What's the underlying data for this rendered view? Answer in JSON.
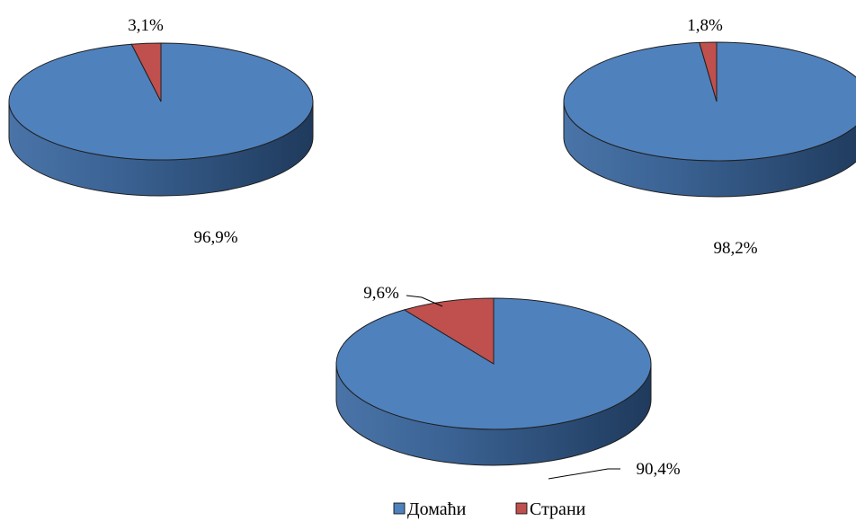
{
  "chart_data": [
    {
      "type": "pie",
      "categories": [
        "Домаћи",
        "Страни"
      ],
      "values": [
        96.9,
        3.1
      ],
      "labels": [
        "96,9%",
        "3,1%"
      ]
    },
    {
      "type": "pie",
      "categories": [
        "Домаћи",
        "Страни"
      ],
      "values": [
        98.2,
        1.8
      ],
      "labels": [
        "98,2%",
        "1,8%"
      ]
    },
    {
      "type": "pie",
      "categories": [
        "Домаћи",
        "Страни"
      ],
      "values": [
        90.4,
        9.6
      ],
      "labels": [
        "90,4%",
        "9,6%"
      ]
    }
  ],
  "legend": {
    "position": "bottom",
    "items": [
      {
        "label": "Домаћи",
        "color": "#4f81bd"
      },
      {
        "label": "Страни",
        "color": "#c0504d"
      }
    ]
  },
  "colors": {
    "domestic_top": "#4f81bd",
    "domestic_side": "#2c4d75",
    "foreign_top": "#c0504d",
    "foreign_side": "#8c3836"
  }
}
